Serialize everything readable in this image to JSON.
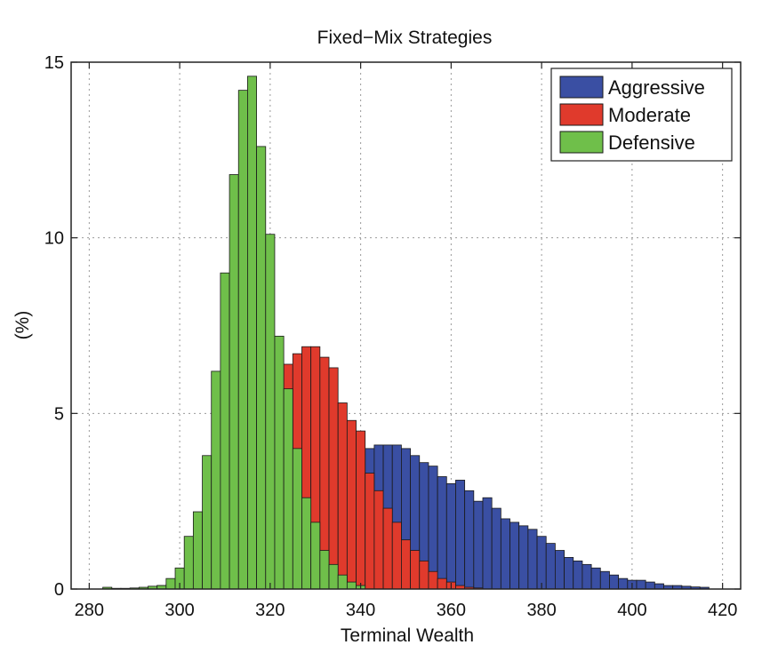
{
  "chart_data": {
    "type": "bar",
    "title": "Fixed−Mix Strategies",
    "xlabel": "Terminal Wealth",
    "ylabel": "(%)",
    "xlim": [
      276,
      424
    ],
    "ylim": [
      0,
      15
    ],
    "xticks": [
      280,
      300,
      320,
      340,
      360,
      380,
      400,
      420
    ],
    "yticks": [
      0,
      5,
      10,
      15
    ],
    "grid": true,
    "legend": "top-right",
    "bin_width": 2,
    "colors": {
      "Aggressive": "#3a4fa3",
      "Moderate": "#e03a2c",
      "Defensive": "#6fbf4a"
    },
    "series": [
      {
        "name": "Aggressive",
        "x": [
          314,
          316,
          318,
          320,
          322,
          324,
          326,
          328,
          330,
          332,
          334,
          336,
          338,
          340,
          342,
          344,
          346,
          348,
          350,
          352,
          354,
          356,
          358,
          360,
          362,
          364,
          366,
          368,
          370,
          372,
          374,
          376,
          378,
          380,
          382,
          384,
          386,
          388,
          390,
          392,
          394,
          396,
          398,
          400,
          402,
          404,
          406,
          408,
          410,
          412,
          414,
          416
        ],
        "values": [
          0.1,
          0.2,
          0.3,
          0.5,
          0.7,
          1.0,
          1.3,
          1.7,
          2.1,
          2.5,
          2.9,
          3.3,
          3.7,
          3.9,
          4.0,
          4.1,
          4.1,
          4.1,
          4.0,
          3.8,
          3.6,
          3.5,
          3.2,
          3.0,
          3.1,
          2.8,
          2.5,
          2.6,
          2.3,
          2.0,
          1.9,
          1.8,
          1.7,
          1.5,
          1.3,
          1.1,
          0.9,
          0.8,
          0.7,
          0.6,
          0.5,
          0.4,
          0.3,
          0.25,
          0.25,
          0.2,
          0.15,
          0.1,
          0.1,
          0.08,
          0.06,
          0.05
        ]
      },
      {
        "name": "Moderate",
        "x": [
          296,
          298,
          300,
          302,
          304,
          306,
          308,
          310,
          312,
          314,
          316,
          318,
          320,
          322,
          324,
          326,
          328,
          330,
          332,
          334,
          336,
          338,
          340,
          342,
          344,
          346,
          348,
          350,
          352,
          354,
          356,
          358,
          360,
          362,
          364,
          366
        ],
        "values": [
          0.1,
          0.15,
          0.2,
          0.3,
          0.5,
          0.8,
          1.2,
          1.7,
          2.3,
          3.0,
          3.7,
          4.5,
          5.1,
          5.7,
          6.4,
          6.7,
          6.9,
          6.9,
          6.6,
          6.3,
          5.3,
          4.8,
          4.5,
          3.3,
          2.8,
          2.3,
          1.9,
          1.4,
          1.1,
          0.8,
          0.5,
          0.3,
          0.2,
          0.1,
          0.05,
          0.03
        ]
      },
      {
        "name": "Defensive",
        "x": [
          284,
          286,
          288,
          290,
          292,
          294,
          296,
          298,
          300,
          302,
          304,
          306,
          308,
          310,
          312,
          314,
          316,
          318,
          320,
          322,
          324,
          326,
          328,
          330,
          332,
          334,
          336,
          338,
          340
        ],
        "values": [
          0.05,
          0.02,
          0.02,
          0.03,
          0.05,
          0.08,
          0.1,
          0.3,
          0.6,
          1.5,
          2.2,
          3.8,
          6.2,
          9.0,
          11.8,
          14.2,
          14.6,
          12.6,
          10.1,
          7.2,
          5.7,
          4.0,
          2.6,
          1.9,
          1.1,
          0.7,
          0.4,
          0.2,
          0.1
        ]
      }
    ]
  }
}
